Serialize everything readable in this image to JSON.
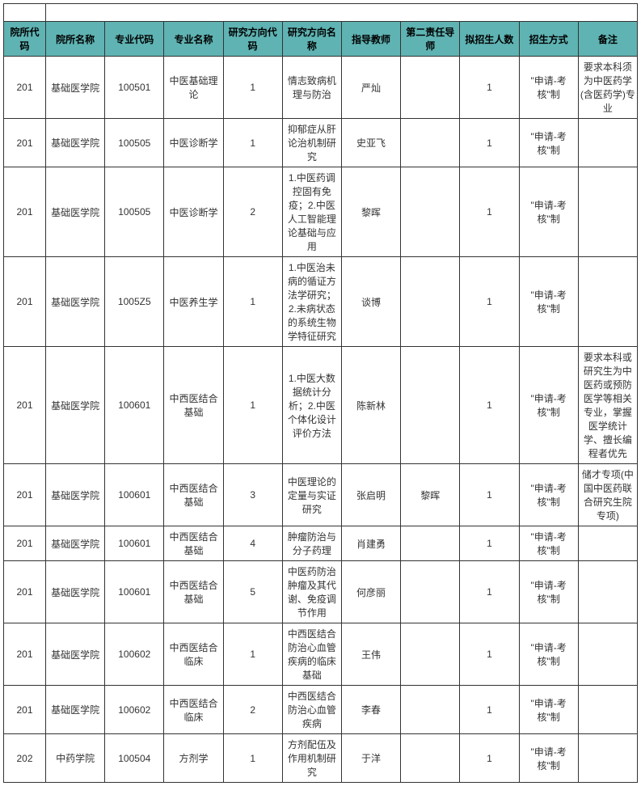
{
  "table": {
    "header_bg": "#5fb3b3",
    "border_color": "#333333",
    "columns": [
      {
        "key": "dept_code",
        "label": "院所代码",
        "width": 52
      },
      {
        "key": "dept_name",
        "label": "院所名称",
        "width": 76
      },
      {
        "key": "major_code",
        "label": "专业代码",
        "width": 60
      },
      {
        "key": "major_name",
        "label": "专业名称",
        "width": 76
      },
      {
        "key": "dir_code",
        "label": "研究方向代码",
        "width": 56
      },
      {
        "key": "dir_name",
        "label": "研究方向名称",
        "width": 88
      },
      {
        "key": "advisor",
        "label": "指导教师",
        "width": 60
      },
      {
        "key": "second_advisor",
        "label": "第二责任导师",
        "width": 56
      },
      {
        "key": "plan_count",
        "label": "拟招生人数",
        "width": 66
      },
      {
        "key": "method",
        "label": "招生方式",
        "width": 76
      },
      {
        "key": "remark",
        "label": "备注",
        "width": 76
      }
    ],
    "rows": [
      {
        "dept_code": "201",
        "dept_name": "基础医学院",
        "major_code": "100501",
        "major_name": "中医基础理论",
        "dir_code": "1",
        "dir_name": "情志致病机理与防治",
        "advisor": "严灿",
        "second_advisor": "",
        "plan_count": "1",
        "method": "\"申请-考核\"制",
        "remark": "要求本科须为中医药学(含医药学)专业"
      },
      {
        "dept_code": "201",
        "dept_name": "基础医学院",
        "major_code": "100505",
        "major_name": "中医诊断学",
        "dir_code": "1",
        "dir_name": "抑郁症从肝论治机制研究",
        "advisor": "史亚飞",
        "second_advisor": "",
        "plan_count": "1",
        "method": "\"申请-考核\"制",
        "remark": ""
      },
      {
        "dept_code": "201",
        "dept_name": "基础医学院",
        "major_code": "100505",
        "major_name": "中医诊断学",
        "dir_code": "2",
        "dir_name": "1.中医药调控固有免疫；2.中医人工智能理论基础与应用",
        "advisor": "黎晖",
        "second_advisor": "",
        "plan_count": "1",
        "method": "\"申请-考核\"制",
        "remark": ""
      },
      {
        "dept_code": "201",
        "dept_name": "基础医学院",
        "major_code": "1005Z5",
        "major_name": "中医养生学",
        "dir_code": "1",
        "dir_name": "1.中医治未病的循证方法学研究；2.未病状态的系统生物学特征研究",
        "advisor": "谈博",
        "second_advisor": "",
        "plan_count": "1",
        "method": "\"申请-考核\"制",
        "remark": ""
      },
      {
        "dept_code": "201",
        "dept_name": "基础医学院",
        "major_code": "100601",
        "major_name": "中西医结合基础",
        "dir_code": "1",
        "dir_name": "1.中医大数据统计分析；2.中医个体化设计评价方法",
        "advisor": "陈新林",
        "second_advisor": "",
        "plan_count": "1",
        "method": "\"申请-考核\"制",
        "remark": "要求本科或研究生为中医药或预防医学等相关专业，掌握医学统计学、擅长编程者优先"
      },
      {
        "dept_code": "201",
        "dept_name": "基础医学院",
        "major_code": "100601",
        "major_name": "中西医结合基础",
        "dir_code": "3",
        "dir_name": "中医理论的定量与实证研究",
        "advisor": "张启明",
        "second_advisor": "黎晖",
        "plan_count": "1",
        "method": "\"申请-考核\"制",
        "remark": "储才专项(中国中医药联合研究生院专项)"
      },
      {
        "dept_code": "201",
        "dept_name": "基础医学院",
        "major_code": "100601",
        "major_name": "中西医结合基础",
        "dir_code": "4",
        "dir_name": "肿瘤防治与分子药理",
        "advisor": "肖建勇",
        "second_advisor": "",
        "plan_count": "1",
        "method": "\"申请-考核\"制",
        "remark": ""
      },
      {
        "dept_code": "201",
        "dept_name": "基础医学院",
        "major_code": "100601",
        "major_name": "中西医结合基础",
        "dir_code": "5",
        "dir_name": "中医药防治肿瘤及其代谢、免疫调节作用",
        "advisor": "何彦丽",
        "second_advisor": "",
        "plan_count": "1",
        "method": "\"申请-考核\"制",
        "remark": ""
      },
      {
        "dept_code": "201",
        "dept_name": "基础医学院",
        "major_code": "100602",
        "major_name": "中西医结合临床",
        "dir_code": "1",
        "dir_name": "中西医结合防治心血管疾病的临床基础",
        "advisor": "王伟",
        "second_advisor": "",
        "plan_count": "1",
        "method": "\"申请-考核\"制",
        "remark": ""
      },
      {
        "dept_code": "201",
        "dept_name": "基础医学院",
        "major_code": "100602",
        "major_name": "中西医结合临床",
        "dir_code": "2",
        "dir_name": "中西医结合防治心血管疾病",
        "advisor": "李春",
        "second_advisor": "",
        "plan_count": "1",
        "method": "\"申请-考核\"制",
        "remark": ""
      },
      {
        "dept_code": "202",
        "dept_name": "中药学院",
        "major_code": "100504",
        "major_name": "方剂学",
        "dir_code": "1",
        "dir_name": "方剂配伍及作用机制研究",
        "advisor": "于洋",
        "second_advisor": "",
        "plan_count": "1",
        "method": "\"申请-考核\"制",
        "remark": ""
      }
    ]
  }
}
